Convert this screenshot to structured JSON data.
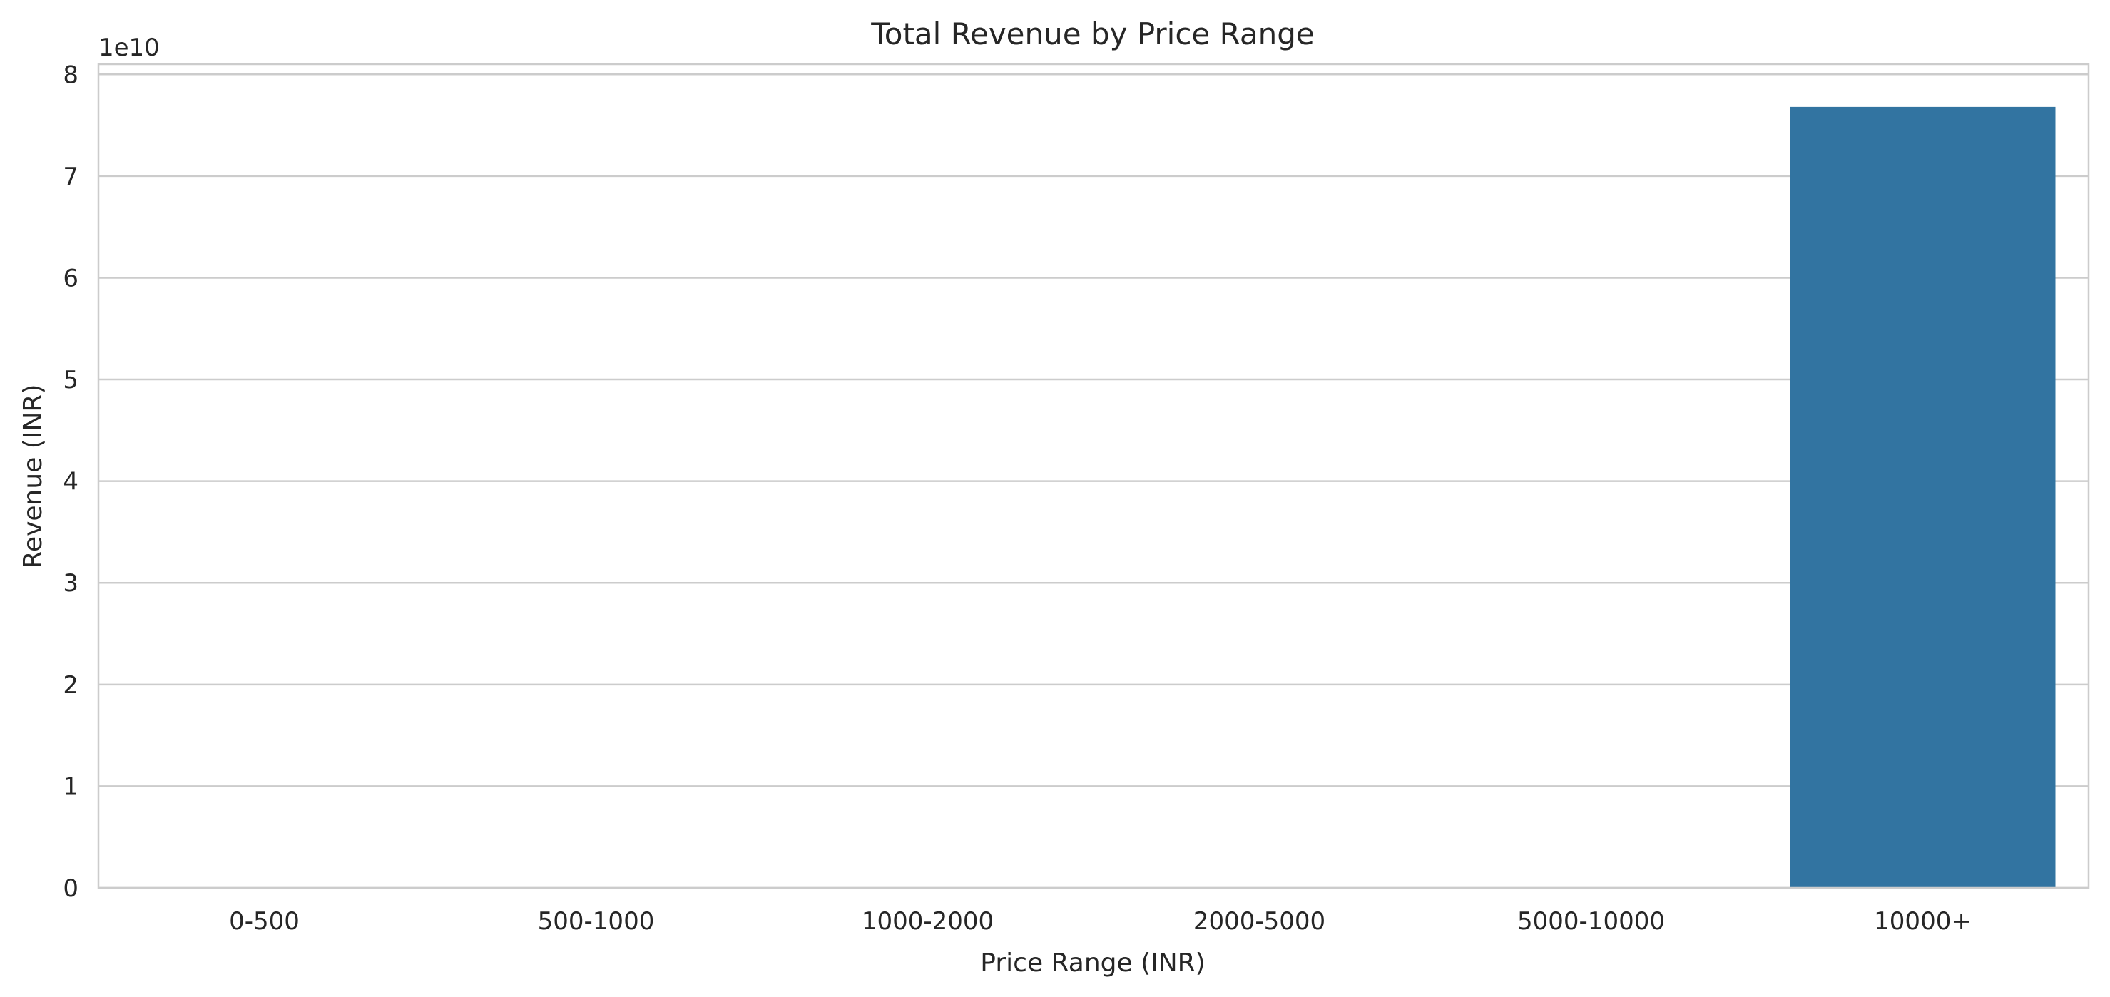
{
  "chart_data": {
    "type": "bar",
    "title": "Total Revenue by Price Range",
    "xlabel": "Price Range (INR)",
    "ylabel": "Revenue (INR)",
    "y_offset_label": "1e10",
    "categories": [
      "0-500",
      "500-1000",
      "1000-2000",
      "2000-5000",
      "5000-10000",
      "10000+"
    ],
    "values": [
      0,
      0,
      0,
      0,
      0,
      76800000000
    ],
    "ylim": [
      0,
      81000000000
    ],
    "y_ticks": [
      0,
      10000000000,
      20000000000,
      30000000000,
      40000000000,
      50000000000,
      60000000000,
      70000000000,
      80000000000
    ],
    "y_tick_labels": [
      "0",
      "1",
      "2",
      "3",
      "4",
      "5",
      "6",
      "7",
      "8"
    ],
    "grid": "horizontal",
    "legend": "none",
    "colors": {
      "bar": "#3274a1",
      "grid": "#cccccc",
      "text": "#262626",
      "background": "#ffffff"
    }
  }
}
